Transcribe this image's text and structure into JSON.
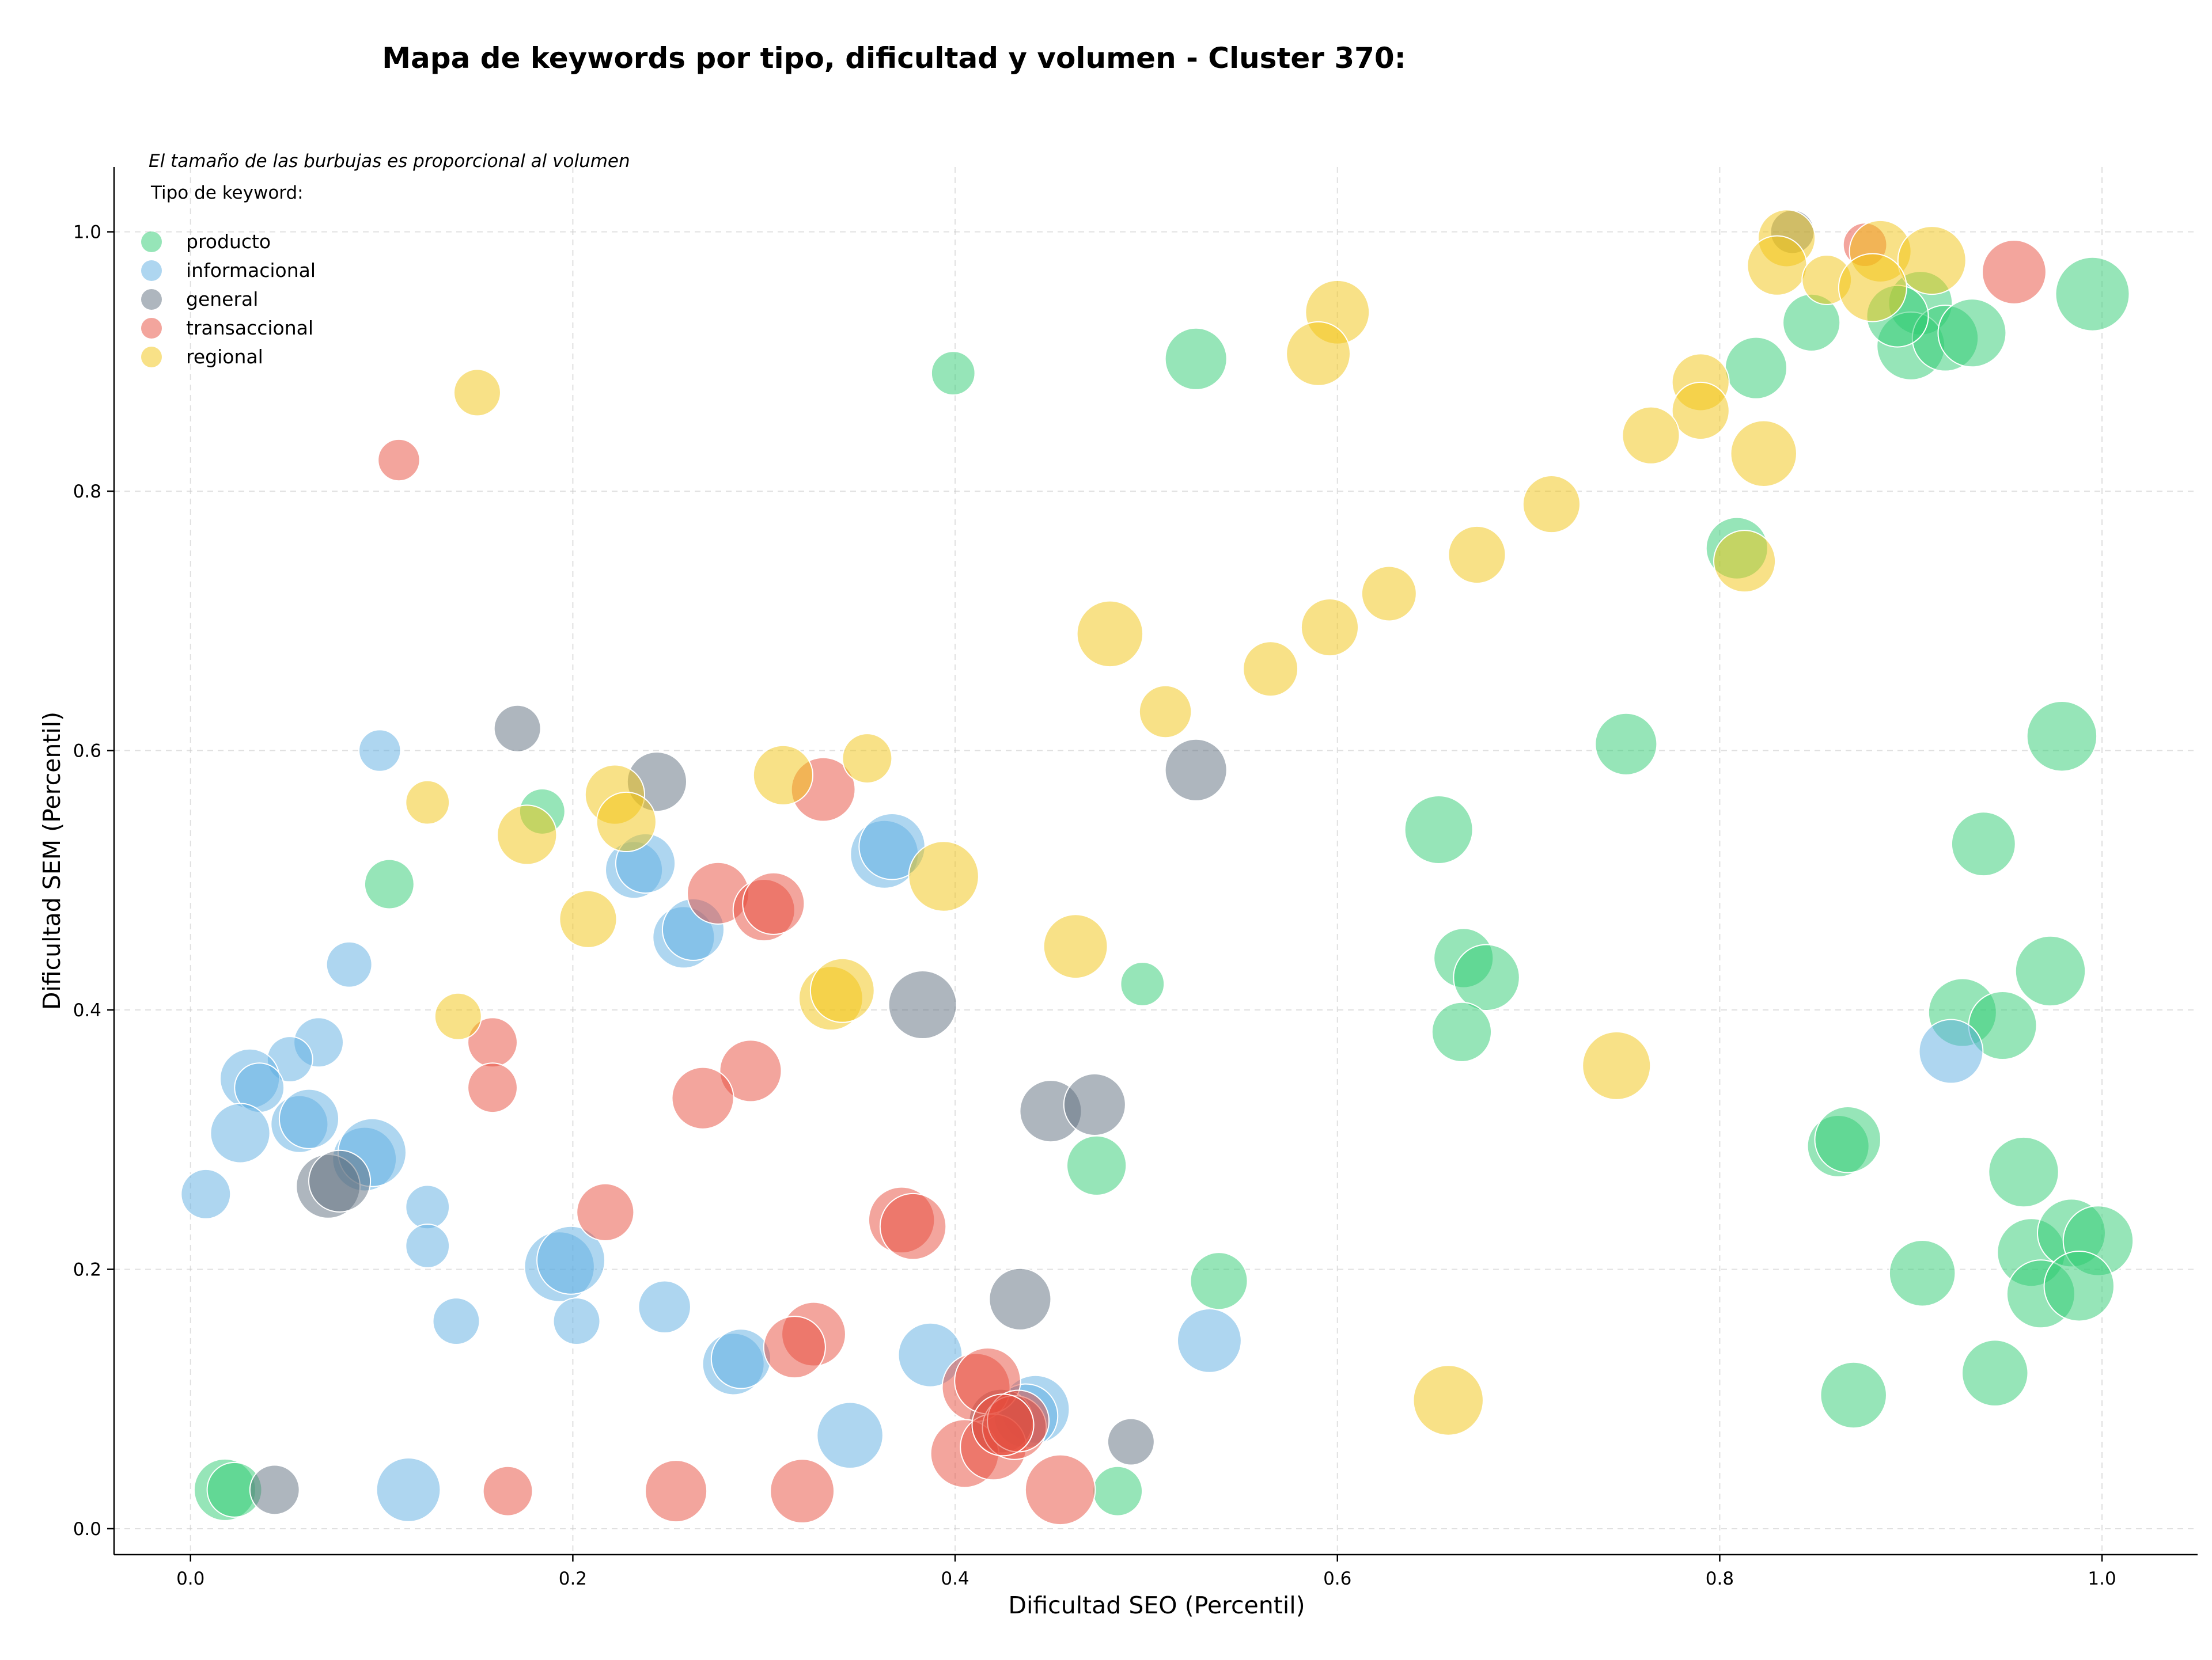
{
  "chart_data": {
    "type": "scatter",
    "title": "Mapa de keywords por tipo, dificultad y volumen - Cluster 370:",
    "xlabel": "Dificultad SEO (Percentil)",
    "ylabel": "Dificultad SEM (Percentil)",
    "xlim": [
      -0.04,
      1.05
    ],
    "ylim": [
      -0.02,
      1.05
    ],
    "xticks": [
      "0.0",
      "0.2",
      "0.4",
      "0.6",
      "0.8",
      "1.0"
    ],
    "yticks": [
      "0.0",
      "0.2",
      "0.4",
      "0.6",
      "0.8",
      "1.0"
    ],
    "grid": true,
    "note": "El tamaño de las burbujas es proporcional al volumen",
    "legend_title": "Tipo de keyword:",
    "legend_position": "top-left",
    "series": [
      {
        "name": "producto",
        "color": "#2ecc71",
        "points": [
          [
            0.995,
            0.952,
            1.0
          ],
          [
            0.905,
            0.945,
            0.75
          ],
          [
            0.9,
            0.912,
            0.85
          ],
          [
            0.918,
            0.918,
            0.8
          ],
          [
            0.932,
            0.922,
            0.85
          ],
          [
            0.893,
            0.935,
            0.7
          ],
          [
            0.848,
            0.93,
            0.6
          ],
          [
            0.819,
            0.895,
            0.7
          ],
          [
            0.809,
            0.756,
            0.7
          ],
          [
            0.526,
            0.902,
            0.7
          ],
          [
            0.399,
            0.891,
            0.35
          ],
          [
            0.751,
            0.605,
            0.7
          ],
          [
            0.979,
            0.611,
            0.9
          ],
          [
            0.653,
            0.539,
            0.85
          ],
          [
            0.938,
            0.528,
            0.75
          ],
          [
            0.666,
            0.44,
            0.65
          ],
          [
            0.678,
            0.425,
            0.8
          ],
          [
            0.665,
            0.383,
            0.65
          ],
          [
            0.973,
            0.43,
            0.9
          ],
          [
            0.927,
            0.398,
            0.85
          ],
          [
            0.948,
            0.388,
            0.85
          ],
          [
            0.862,
            0.295,
            0.7
          ],
          [
            0.867,
            0.3,
            0.8
          ],
          [
            0.474,
            0.28,
            0.65
          ],
          [
            0.959,
            0.275,
            0.9
          ],
          [
            0.963,
            0.213,
            0.85
          ],
          [
            0.984,
            0.228,
            0.85
          ],
          [
            0.998,
            0.222,
            0.9
          ],
          [
            0.968,
            0.181,
            0.85
          ],
          [
            0.988,
            0.187,
            0.9
          ],
          [
            0.906,
            0.197,
            0.8
          ],
          [
            0.538,
            0.191,
            0.6
          ],
          [
            0.944,
            0.12,
            0.8
          ],
          [
            0.87,
            0.103,
            0.8
          ],
          [
            0.498,
            0.42,
            0.35
          ],
          [
            0.184,
            0.553,
            0.38
          ],
          [
            0.104,
            0.497,
            0.45
          ],
          [
            0.018,
            0.03,
            0.7
          ],
          [
            0.023,
            0.03,
            0.55
          ],
          [
            0.485,
            0.029,
            0.45
          ]
        ]
      },
      {
        "name": "informacional",
        "color": "#5dade2",
        "points": [
          [
            0.099,
            0.6,
            0.32
          ],
          [
            0.083,
            0.435,
            0.38
          ],
          [
            0.067,
            0.375,
            0.45
          ],
          [
            0.052,
            0.362,
            0.38
          ],
          [
            0.031,
            0.347,
            0.65
          ],
          [
            0.036,
            0.34,
            0.45
          ],
          [
            0.026,
            0.305,
            0.65
          ],
          [
            0.057,
            0.312,
            0.6
          ],
          [
            0.062,
            0.316,
            0.65
          ],
          [
            0.091,
            0.285,
            0.75
          ],
          [
            0.095,
            0.29,
            0.85
          ],
          [
            0.008,
            0.258,
            0.45
          ],
          [
            0.124,
            0.248,
            0.35
          ],
          [
            0.124,
            0.218,
            0.35
          ],
          [
            0.193,
            0.202,
            0.9
          ],
          [
            0.199,
            0.207,
            0.85
          ],
          [
            0.202,
            0.16,
            0.4
          ],
          [
            0.139,
            0.16,
            0.4
          ],
          [
            0.248,
            0.171,
            0.5
          ],
          [
            0.232,
            0.508,
            0.6
          ],
          [
            0.238,
            0.513,
            0.65
          ],
          [
            0.258,
            0.456,
            0.7
          ],
          [
            0.263,
            0.462,
            0.7
          ],
          [
            0.363,
            0.52,
            0.85
          ],
          [
            0.367,
            0.526,
            0.8
          ],
          [
            0.284,
            0.127,
            0.7
          ],
          [
            0.288,
            0.131,
            0.65
          ],
          [
            0.387,
            0.134,
            0.75
          ],
          [
            0.442,
            0.092,
            0.85
          ],
          [
            0.437,
            0.087,
            0.75
          ],
          [
            0.345,
            0.072,
            0.8
          ],
          [
            0.114,
            0.03,
            0.75
          ],
          [
            0.533,
            0.145,
            0.75
          ],
          [
            0.921,
            0.368,
            0.75
          ]
        ]
      },
      {
        "name": "general",
        "color": "#5d6d7e",
        "points": [
          [
            0.838,
            1.0,
            0.35
          ],
          [
            0.171,
            0.617,
            0.4
          ],
          [
            0.244,
            0.576,
            0.65
          ],
          [
            0.526,
            0.585,
            0.7
          ],
          [
            0.383,
            0.404,
            0.85
          ],
          [
            0.45,
            0.322,
            0.7
          ],
          [
            0.473,
            0.327,
            0.7
          ],
          [
            0.072,
            0.264,
            0.75
          ],
          [
            0.078,
            0.268,
            0.7
          ],
          [
            0.434,
            0.177,
            0.7
          ],
          [
            0.492,
            0.067,
            0.4
          ],
          [
            0.044,
            0.03,
            0.45
          ],
          [
            0.424,
            0.083,
            0.75
          ]
        ]
      },
      {
        "name": "transaccional",
        "color": "#e74c3c",
        "points": [
          [
            0.109,
            0.824,
            0.32
          ],
          [
            0.876,
            0.99,
            0.35
          ],
          [
            0.954,
            0.969,
            0.75
          ],
          [
            0.331,
            0.57,
            0.75
          ],
          [
            0.276,
            0.49,
            0.7
          ],
          [
            0.3,
            0.477,
            0.7
          ],
          [
            0.305,
            0.482,
            0.7
          ],
          [
            0.158,
            0.375,
            0.45
          ],
          [
            0.158,
            0.34,
            0.45
          ],
          [
            0.293,
            0.353,
            0.7
          ],
          [
            0.268,
            0.332,
            0.7
          ],
          [
            0.217,
            0.244,
            0.6
          ],
          [
            0.372,
            0.238,
            0.8
          ],
          [
            0.378,
            0.233,
            0.8
          ],
          [
            0.326,
            0.15,
            0.75
          ],
          [
            0.316,
            0.14,
            0.7
          ],
          [
            0.411,
            0.109,
            0.85
          ],
          [
            0.417,
            0.114,
            0.8
          ],
          [
            0.405,
            0.058,
            0.85
          ],
          [
            0.42,
            0.063,
            0.8
          ],
          [
            0.431,
            0.078,
            0.75
          ],
          [
            0.433,
            0.083,
            0.7
          ],
          [
            0.455,
            0.03,
            0.9
          ],
          [
            0.32,
            0.029,
            0.75
          ],
          [
            0.254,
            0.029,
            0.7
          ],
          [
            0.166,
            0.029,
            0.45
          ],
          [
            0.425,
            0.08,
            0.7
          ]
        ]
      },
      {
        "name": "regional",
        "color": "#f1c40f",
        "points": [
          [
            0.835,
            0.995,
            0.6
          ],
          [
            0.83,
            0.974,
            0.65
          ],
          [
            0.856,
            0.963,
            0.45
          ],
          [
            0.884,
            0.985,
            0.7
          ],
          [
            0.911,
            0.978,
            0.85
          ],
          [
            0.88,
            0.957,
            0.85
          ],
          [
            0.6,
            0.938,
            0.75
          ],
          [
            0.59,
            0.906,
            0.75
          ],
          [
            0.15,
            0.876,
            0.4
          ],
          [
            0.79,
            0.884,
            0.6
          ],
          [
            0.79,
            0.862,
            0.6
          ],
          [
            0.764,
            0.843,
            0.6
          ],
          [
            0.823,
            0.829,
            0.8
          ],
          [
            0.712,
            0.79,
            0.6
          ],
          [
            0.673,
            0.751,
            0.6
          ],
          [
            0.813,
            0.746,
            0.7
          ],
          [
            0.627,
            0.721,
            0.55
          ],
          [
            0.596,
            0.695,
            0.6
          ],
          [
            0.481,
            0.69,
            0.8
          ],
          [
            0.565,
            0.663,
            0.55
          ],
          [
            0.51,
            0.63,
            0.5
          ],
          [
            0.354,
            0.594,
            0.45
          ],
          [
            0.31,
            0.581,
            0.65
          ],
          [
            0.124,
            0.56,
            0.35
          ],
          [
            0.222,
            0.566,
            0.65
          ],
          [
            0.228,
            0.545,
            0.65
          ],
          [
            0.176,
            0.535,
            0.65
          ],
          [
            0.208,
            0.47,
            0.6
          ],
          [
            0.394,
            0.503,
            0.9
          ],
          [
            0.463,
            0.449,
            0.75
          ],
          [
            0.335,
            0.409,
            0.75
          ],
          [
            0.341,
            0.415,
            0.75
          ],
          [
            0.14,
            0.395,
            0.4
          ],
          [
            0.746,
            0.357,
            0.85
          ],
          [
            0.658,
            0.099,
            0.9
          ]
        ]
      }
    ]
  }
}
